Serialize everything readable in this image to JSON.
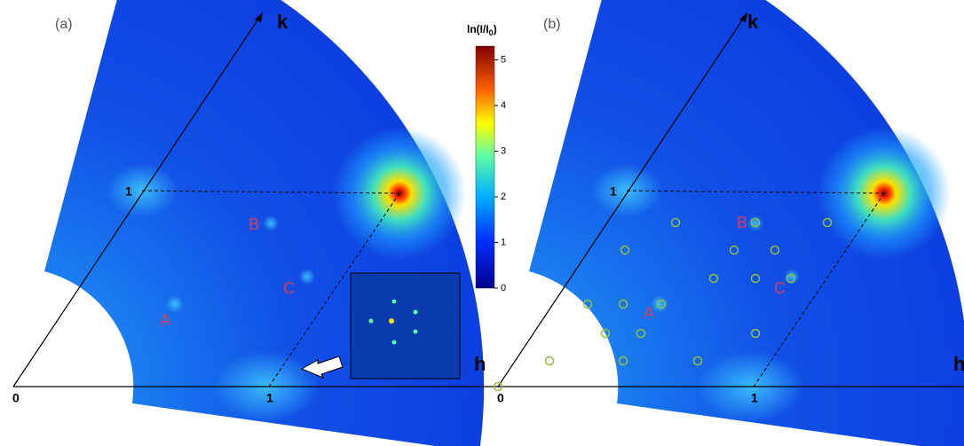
{
  "panels": [
    {
      "label": "(a)",
      "axis_h": "h",
      "axis_k": "k",
      "origin": "0",
      "h_tick": "1",
      "k_tick": "1",
      "peaks": [
        "A",
        "B",
        "C"
      ]
    },
    {
      "label": "(b)",
      "axis_h": "h",
      "axis_k": "k",
      "origin": "0",
      "h_tick": "1",
      "k_tick": "1",
      "peaks": [
        "A",
        "B",
        "C"
      ]
    }
  ],
  "colorbar": {
    "title": "ln(I/I",
    "title_sub": "0",
    "title_end": ")",
    "range": [
      0,
      5.3
    ],
    "ticks": [
      0,
      1,
      2,
      3,
      4,
      5
    ]
  }
}
